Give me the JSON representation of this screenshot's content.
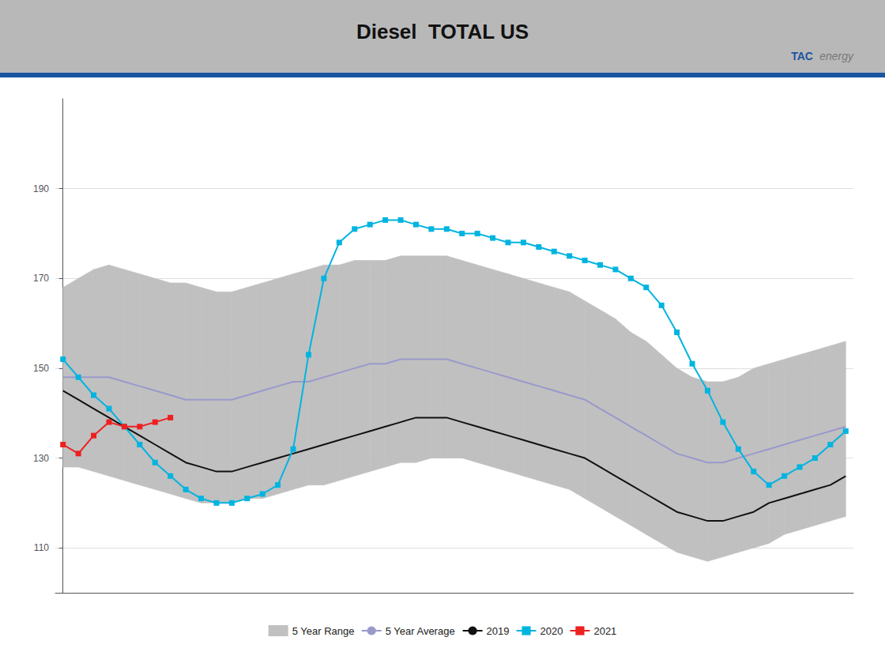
{
  "chart_data": {
    "type": "line",
    "title": "Diesel  TOTAL US",
    "annotations": [
      "TAC",
      "energy"
    ],
    "x": [
      0,
      1,
      2,
      3,
      4,
      5,
      6,
      7,
      8,
      9,
      10,
      11,
      12,
      13,
      14,
      15,
      16,
      17,
      18,
      19,
      20,
      21,
      22,
      23,
      24,
      25,
      26,
      27,
      28,
      29,
      30,
      31,
      32,
      33,
      34,
      35,
      36,
      37,
      38,
      39,
      40,
      41,
      42,
      43,
      44,
      45,
      46,
      47,
      48,
      49,
      50,
      51
    ],
    "xlim": [
      -0.5,
      51.5
    ],
    "xticks": [],
    "ylim": [
      100,
      210
    ],
    "yticks": [
      110,
      130,
      150,
      170,
      190
    ],
    "grid": true,
    "legend": "bottom",
    "tick_labels": "y",
    "series": [
      {
        "name": "5 Year Range",
        "type": "range",
        "color": "#c0c0c0",
        "lower": [
          128,
          128,
          127,
          126,
          125,
          124,
          123,
          122,
          121,
          120,
          120,
          120,
          121,
          121,
          122,
          123,
          124,
          124,
          125,
          126,
          127,
          128,
          129,
          129,
          130,
          130,
          130,
          129,
          128,
          127,
          126,
          125,
          124,
          123,
          121,
          119,
          117,
          115,
          113,
          111,
          109,
          108,
          107,
          108,
          109,
          110,
          111,
          113,
          114,
          115,
          116,
          117
        ],
        "upper": [
          168,
          170,
          172,
          173,
          172,
          171,
          170,
          169,
          169,
          168,
          167,
          167,
          168,
          169,
          170,
          171,
          172,
          173,
          173,
          174,
          174,
          174,
          175,
          175,
          175,
          175,
          174,
          173,
          172,
          171,
          170,
          169,
          168,
          167,
          165,
          163,
          161,
          158,
          156,
          153,
          150,
          148,
          147,
          147,
          148,
          150,
          151,
          152,
          153,
          154,
          155,
          156
        ]
      },
      {
        "name": "5 Year Average",
        "type": "line",
        "color": "#9999cc",
        "values": [
          148,
          148,
          148,
          148,
          147,
          146,
          145,
          144,
          143,
          143,
          143,
          143,
          144,
          145,
          146,
          147,
          147,
          148,
          149,
          150,
          151,
          151,
          152,
          152,
          152,
          152,
          151,
          150,
          149,
          148,
          147,
          146,
          145,
          144,
          143,
          141,
          139,
          137,
          135,
          133,
          131,
          130,
          129,
          129,
          130,
          131,
          132,
          133,
          134,
          135,
          136,
          137
        ]
      },
      {
        "name": "2019",
        "type": "line",
        "color": "#111111",
        "values": [
          145,
          143,
          141,
          139,
          137,
          135,
          133,
          131,
          129,
          128,
          127,
          127,
          128,
          129,
          130,
          131,
          132,
          133,
          134,
          135,
          136,
          137,
          138,
          139,
          139,
          139,
          138,
          137,
          136,
          135,
          134,
          133,
          132,
          131,
          130,
          128,
          126,
          124,
          122,
          120,
          118,
          117,
          116,
          116,
          117,
          118,
          120,
          121,
          122,
          123,
          124,
          126
        ]
      },
      {
        "name": "2020",
        "type": "line",
        "color": "#00b4e0",
        "marker": "square",
        "values": [
          152,
          148,
          144,
          141,
          137,
          133,
          129,
          126,
          123,
          121,
          120,
          120,
          121,
          122,
          124,
          132,
          153,
          170,
          178,
          181,
          182,
          183,
          183,
          182,
          181,
          181,
          180,
          180,
          179,
          178,
          178,
          177,
          176,
          175,
          174,
          173,
          172,
          170,
          168,
          164,
          158,
          151,
          145,
          138,
          132,
          127,
          124,
          126,
          128,
          130,
          133,
          136
        ]
      },
      {
        "name": "2021",
        "type": "line",
        "color": "#ee2020",
        "marker": "square",
        "values": [
          133,
          131,
          135,
          138,
          137,
          137,
          138,
          139,
          null,
          null,
          null,
          null,
          null,
          null,
          null,
          null,
          null,
          null,
          null,
          null,
          null,
          null,
          null,
          null,
          null,
          null,
          null,
          null,
          null,
          null,
          null,
          null,
          null,
          null,
          null,
          null,
          null,
          null,
          null,
          null,
          null,
          null,
          null,
          null,
          null,
          null,
          null,
          null,
          null,
          null,
          null,
          null
        ]
      }
    ]
  }
}
